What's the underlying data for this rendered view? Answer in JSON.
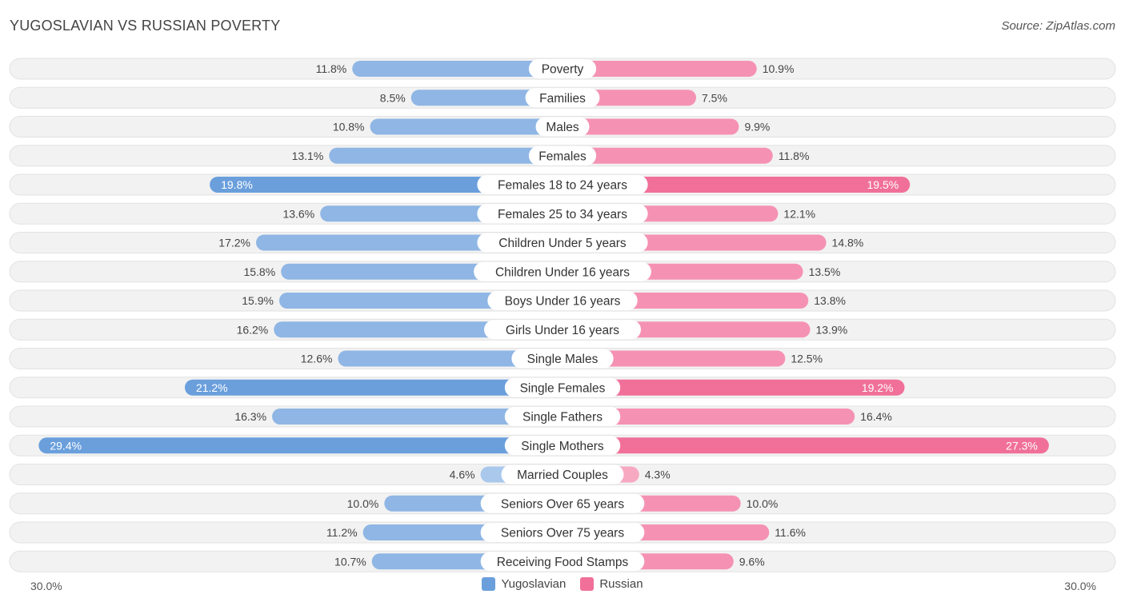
{
  "title": "YUGOSLAVIAN VS RUSSIAN POVERTY",
  "source": "Source: ZipAtlas.com",
  "colors": {
    "yugoslavian": "#6a9fdc",
    "yugoslavian_light": "#a9c8ec",
    "russian": "#f07099",
    "russian_light": "#f7a9c2"
  },
  "chart_data": {
    "type": "bar",
    "orientation": "horizontal-diverging",
    "title": "YUGOSLAVIAN VS RUSSIAN POVERTY",
    "xlim": [
      0,
      30
    ],
    "axis_left_label": "30.0%",
    "axis_right_label": "30.0%",
    "categories": [
      "Poverty",
      "Families",
      "Males",
      "Females",
      "Females 18 to 24 years",
      "Females 25 to 34 years",
      "Children Under 5 years",
      "Children Under 16 years",
      "Boys Under 16 years",
      "Girls Under 16 years",
      "Single Males",
      "Single Females",
      "Single Fathers",
      "Single Mothers",
      "Married Couples",
      "Seniors Over 65 years",
      "Seniors Over 75 years",
      "Receiving Food Stamps"
    ],
    "series": [
      {
        "name": "Yugoslavian",
        "values": [
          11.8,
          8.5,
          10.8,
          13.1,
          19.8,
          13.6,
          17.2,
          15.8,
          15.9,
          16.2,
          12.6,
          21.2,
          16.3,
          29.4,
          4.6,
          10.0,
          11.2,
          10.7
        ],
        "labels": [
          "11.8%",
          "8.5%",
          "10.8%",
          "13.1%",
          "19.8%",
          "13.6%",
          "17.2%",
          "15.8%",
          "15.9%",
          "16.2%",
          "12.6%",
          "21.2%",
          "16.3%",
          "29.4%",
          "4.6%",
          "10.0%",
          "11.2%",
          "10.7%"
        ]
      },
      {
        "name": "Russian",
        "values": [
          10.9,
          7.5,
          9.9,
          11.8,
          19.5,
          12.1,
          14.8,
          13.5,
          13.8,
          13.9,
          12.5,
          19.2,
          16.4,
          27.3,
          4.3,
          10.0,
          11.6,
          9.6
        ],
        "labels": [
          "10.9%",
          "7.5%",
          "9.9%",
          "11.8%",
          "19.5%",
          "12.1%",
          "14.8%",
          "13.5%",
          "13.8%",
          "13.9%",
          "12.5%",
          "19.2%",
          "16.4%",
          "27.3%",
          "4.3%",
          "10.0%",
          "11.6%",
          "9.6%"
        ]
      }
    ],
    "legend": [
      "Yugoslavian",
      "Russian"
    ]
  }
}
